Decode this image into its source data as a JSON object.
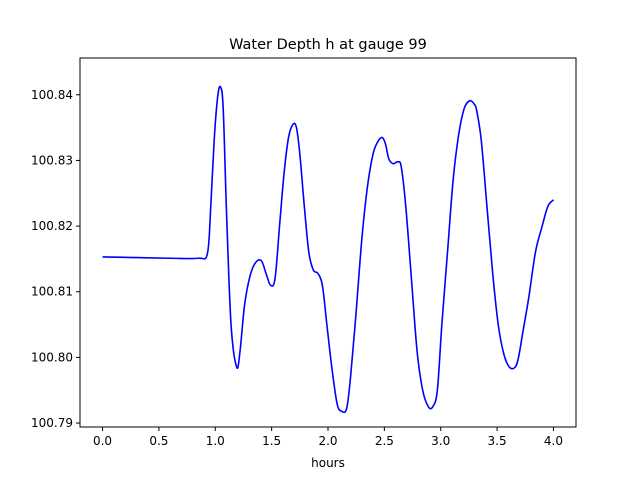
{
  "chart_data": {
    "type": "line",
    "title": "Water Depth h at gauge 99",
    "xlabel": "hours",
    "ylabel": "",
    "xlim": [
      -0.2,
      4.2
    ],
    "ylim": [
      100.7894,
      100.8456
    ],
    "xticks": [
      0.0,
      0.5,
      1.0,
      1.5,
      2.0,
      2.5,
      3.0,
      3.5,
      4.0
    ],
    "xtick_labels": [
      "0.0",
      "0.5",
      "1.0",
      "1.5",
      "2.0",
      "2.5",
      "3.0",
      "3.5",
      "4.0"
    ],
    "yticks": [
      100.79,
      100.8,
      100.81,
      100.82,
      100.83,
      100.84
    ],
    "ytick_labels": [
      "100.79",
      "100.80",
      "100.81",
      "100.82",
      "100.83",
      "100.84"
    ],
    "grid": false,
    "series": [
      {
        "color": "#0000ff",
        "x": [
          0.0,
          0.3,
          0.6,
          0.85,
          0.93,
          0.96,
          0.99,
          1.02,
          1.045,
          1.07,
          1.1,
          1.14,
          1.19,
          1.22,
          1.26,
          1.31,
          1.36,
          1.41,
          1.45,
          1.49,
          1.53,
          1.57,
          1.61,
          1.65,
          1.69,
          1.72,
          1.75,
          1.79,
          1.83,
          1.87,
          1.91,
          1.95,
          1.99,
          2.03,
          2.08,
          2.12,
          2.165,
          2.2,
          2.25,
          2.3,
          2.35,
          2.4,
          2.44,
          2.48,
          2.51,
          2.54,
          2.58,
          2.62,
          2.65,
          2.69,
          2.74,
          2.79,
          2.84,
          2.89,
          2.93,
          2.97,
          3.01,
          3.06,
          3.11,
          3.16,
          3.21,
          3.26,
          3.3,
          3.32,
          3.36,
          3.41,
          3.46,
          3.51,
          3.56,
          3.61,
          3.66,
          3.69,
          3.73,
          3.78,
          3.84,
          3.9,
          3.95,
          4.0
        ],
        "values": [
          100.8153,
          100.8152,
          100.8151,
          100.8151,
          100.8158,
          100.823,
          100.833,
          100.8395,
          100.8412,
          100.838,
          100.822,
          100.805,
          100.7985,
          100.801,
          100.808,
          100.8125,
          100.8145,
          100.8147,
          100.8128,
          100.811,
          100.812,
          100.82,
          100.828,
          100.8335,
          100.8355,
          100.835,
          100.831,
          100.823,
          100.816,
          100.8133,
          100.8128,
          100.811,
          100.805,
          100.799,
          100.793,
          100.7918,
          100.7922,
          100.797,
          100.807,
          100.818,
          100.826,
          100.831,
          100.8328,
          100.8335,
          100.8325,
          100.8302,
          100.8295,
          100.8298,
          100.829,
          100.823,
          100.812,
          100.801,
          100.795,
          100.7925,
          100.7925,
          100.795,
          100.805,
          100.816,
          100.827,
          100.834,
          100.838,
          100.8391,
          100.8385,
          100.8375,
          100.833,
          100.823,
          100.813,
          100.805,
          100.8005,
          100.7985,
          100.7985,
          100.8,
          100.804,
          100.809,
          100.816,
          100.82,
          100.823,
          100.824
        ]
      }
    ]
  }
}
